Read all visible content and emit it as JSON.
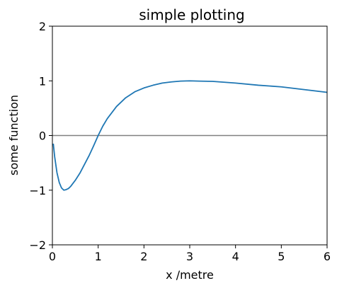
{
  "chart_data": {
    "type": "line",
    "title": "simple plotting",
    "xlabel": "x /metre",
    "ylabel": "some function",
    "xlim": [
      0,
      6
    ],
    "ylim": [
      -2,
      2
    ],
    "xticks": [
      0,
      1,
      2,
      3,
      4,
      5,
      6
    ],
    "yticks": [
      -2,
      -1,
      0,
      1,
      2
    ],
    "xtick_labels": [
      "0",
      "1",
      "2",
      "3",
      "4",
      "5",
      "6"
    ],
    "ytick_labels": [
      "−2",
      "−1",
      "0",
      "1",
      "2"
    ],
    "grid": false,
    "reference_line": {
      "y": 0,
      "color": "#808080"
    },
    "series": [
      {
        "color": "#1f77b4",
        "x": [
          0.02,
          0.05,
          0.1,
          0.15,
          0.2,
          0.25,
          0.3,
          0.35,
          0.4,
          0.5,
          0.6,
          0.7,
          0.8,
          0.9,
          1.0,
          1.1,
          1.2,
          1.4,
          1.6,
          1.8,
          2.0,
          2.2,
          2.4,
          2.6,
          2.8,
          3.0,
          3.2,
          3.5,
          4.0,
          4.5,
          5.0,
          5.5,
          6.0
        ],
        "y": [
          -0.15,
          -0.39,
          -0.68,
          -0.86,
          -0.96,
          -1.0,
          -0.99,
          -0.97,
          -0.93,
          -0.82,
          -0.69,
          -0.53,
          -0.37,
          -0.19,
          0.0,
          0.17,
          0.31,
          0.53,
          0.69,
          0.8,
          0.87,
          0.92,
          0.96,
          0.98,
          0.995,
          1.0,
          0.995,
          0.99,
          0.96,
          0.92,
          0.89,
          0.84,
          0.79
        ]
      }
    ]
  }
}
